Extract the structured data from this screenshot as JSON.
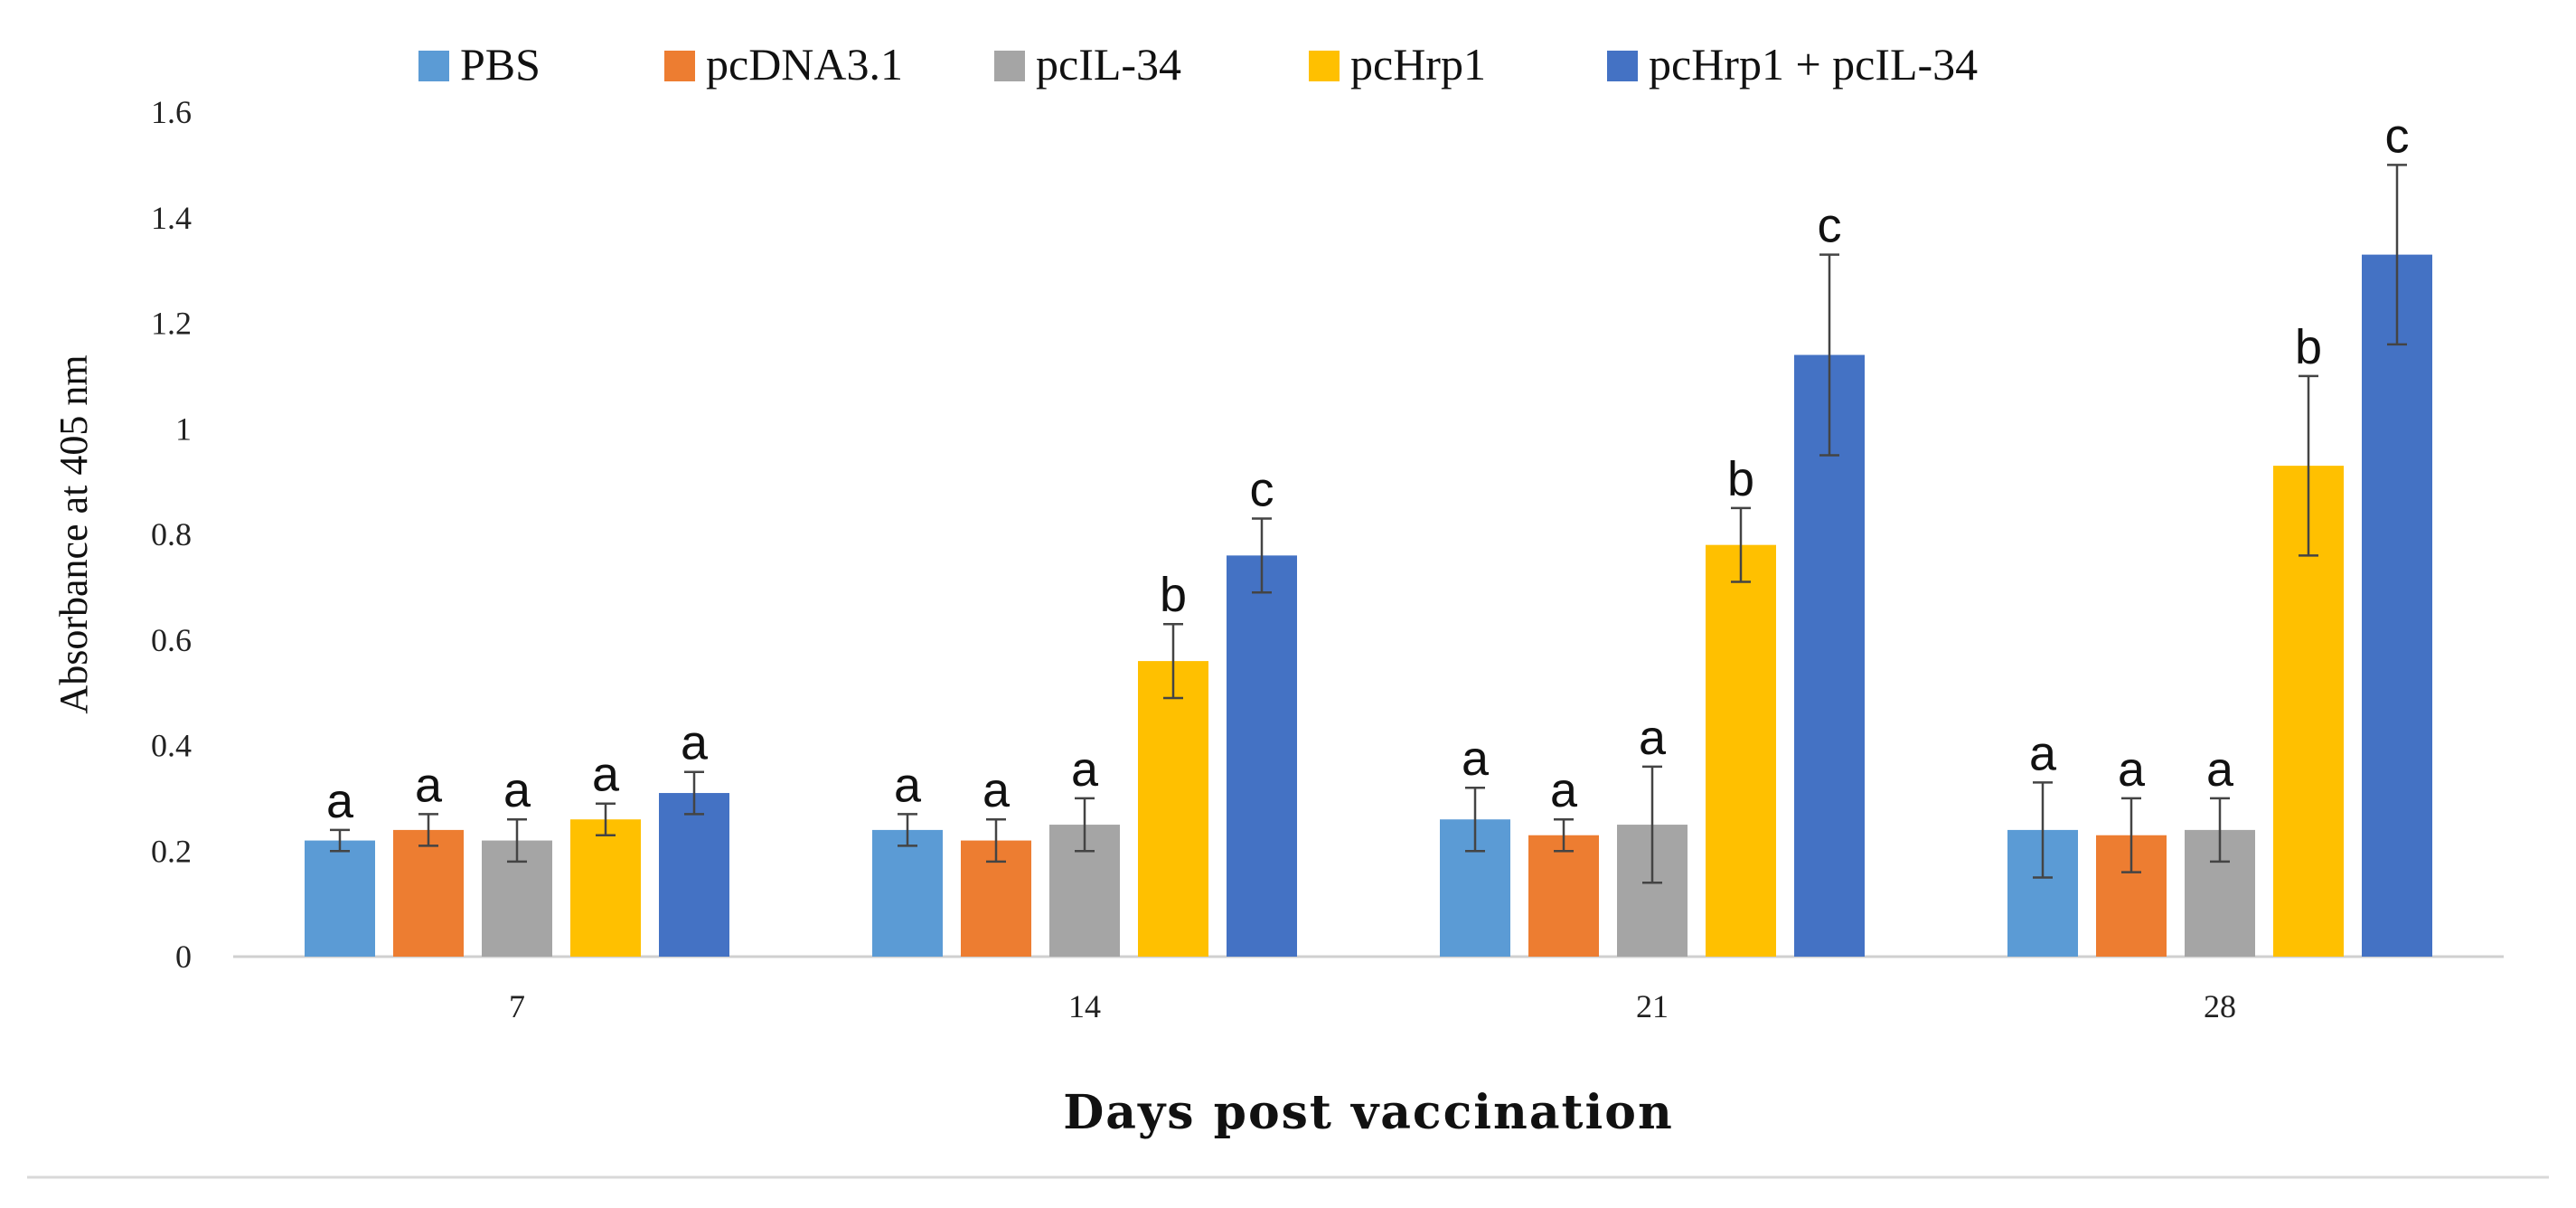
{
  "chart_data": {
    "type": "bar",
    "title": "",
    "xlabel": "Days post vaccination",
    "ylabel": "Absorbance at 405 nm",
    "ylim": [
      0,
      1.6
    ],
    "yticks": [
      "0",
      "0.2",
      "0.4",
      "0.6",
      "0.8",
      "1",
      "1.2",
      "1.4",
      "1.6"
    ],
    "yticks_values": [
      0,
      0.2,
      0.4,
      0.6,
      0.8,
      1.0,
      1.2,
      1.4,
      1.6
    ],
    "grid": false,
    "legend_position": "top",
    "categories": [
      "7",
      "14",
      "21",
      "28"
    ],
    "series": [
      {
        "name": "PBS",
        "color": "#5B9BD5",
        "values": [
          0.22,
          0.24,
          0.26,
          0.24
        ],
        "errors": [
          0.02,
          0.03,
          0.06,
          0.09
        ],
        "labels": [
          "a",
          "a",
          "a",
          "a"
        ]
      },
      {
        "name": "pcDNA3.1",
        "color": "#ED7D31",
        "values": [
          0.24,
          0.22,
          0.23,
          0.23
        ],
        "errors": [
          0.03,
          0.04,
          0.03,
          0.07
        ],
        "labels": [
          "a",
          "a",
          "a",
          "a"
        ]
      },
      {
        "name": "pcIL-34",
        "color": "#A5A5A5",
        "values": [
          0.22,
          0.25,
          0.25,
          0.24
        ],
        "errors": [
          0.04,
          0.05,
          0.11,
          0.06
        ],
        "labels": [
          "a",
          "a",
          "a",
          "a"
        ]
      },
      {
        "name": "pcHrp1",
        "color": "#FFC000",
        "values": [
          0.26,
          0.56,
          0.78,
          0.93
        ],
        "errors": [
          0.03,
          0.07,
          0.07,
          0.17
        ],
        "labels": [
          "a",
          "b",
          "b",
          "b"
        ]
      },
      {
        "name": "pcHrp1 + pcIL-34",
        "color": "#4472C4",
        "values": [
          0.31,
          0.76,
          1.14,
          1.33
        ],
        "errors": [
          0.04,
          0.07,
          0.19,
          0.17
        ],
        "labels": [
          "a",
          "c",
          "c",
          "c"
        ]
      }
    ]
  }
}
